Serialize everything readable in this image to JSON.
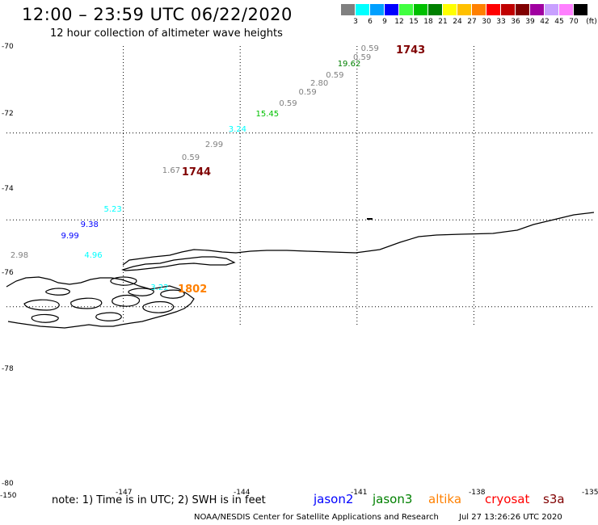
{
  "header": {
    "title": "12:00 – 23:59 UTC 06/22/2020",
    "subtitle": "12 hour collection of altimeter wave heights"
  },
  "legend": {
    "unit": "(ft)",
    "bins": [
      {
        "label": "3",
        "color": "#808080"
      },
      {
        "label": "6",
        "color": "#00ffff"
      },
      {
        "label": "9",
        "color": "#00a0ff"
      },
      {
        "label": "12",
        "color": "#0000ff"
      },
      {
        "label": "15",
        "color": "#40ff40"
      },
      {
        "label": "18",
        "color": "#00c000"
      },
      {
        "label": "21",
        "color": "#008000"
      },
      {
        "label": "24",
        "color": "#ffff00"
      },
      {
        "label": "27",
        "color": "#ffc000"
      },
      {
        "label": "30",
        "color": "#ff8000"
      },
      {
        "label": "33",
        "color": "#ff0000"
      },
      {
        "label": "36",
        "color": "#c00000"
      },
      {
        "label": "39",
        "color": "#800000"
      },
      {
        "label": "42",
        "color": "#a000a0"
      },
      {
        "label": "45",
        "color": "#c8a0ff"
      },
      {
        "label": "70",
        "color": "#ff80ff"
      },
      {
        "label": "",
        "color": "#000000"
      }
    ]
  },
  "axes": {
    "lat_labels": [
      "-70",
      "-72",
      "-74",
      "-76",
      "-78",
      "-80"
    ],
    "lon_labels": [
      "-150",
      "-147",
      "-144",
      "-141",
      "-138",
      "-135"
    ]
  },
  "observations": [
    {
      "text": "0.59",
      "lat": -70.1,
      "lon": -140.9,
      "color": "#808080"
    },
    {
      "text": "1743",
      "lat": -70.1,
      "lon": -140.0,
      "color": "#800000",
      "big": true
    },
    {
      "text": "0.59",
      "lat": -70.3,
      "lon": -141.1,
      "color": "#808080"
    },
    {
      "text": "19.62",
      "lat": -70.45,
      "lon": -141.5,
      "color": "#008000"
    },
    {
      "text": "0.59",
      "lat": -70.7,
      "lon": -141.8,
      "color": "#808080"
    },
    {
      "text": "2.80",
      "lat": -70.9,
      "lon": -142.2,
      "color": "#808080"
    },
    {
      "text": "0.59",
      "lat": -71.1,
      "lon": -142.5,
      "color": "#808080"
    },
    {
      "text": "0.59",
      "lat": -71.35,
      "lon": -143.0,
      "color": "#808080"
    },
    {
      "text": "15.45",
      "lat": -71.6,
      "lon": -143.6,
      "color": "#00c000"
    },
    {
      "text": "3.24",
      "lat": -71.95,
      "lon": -144.3,
      "color": "#00ffff"
    },
    {
      "text": "2.99",
      "lat": -72.3,
      "lon": -144.9,
      "color": "#808080"
    },
    {
      "text": "0.59",
      "lat": -72.6,
      "lon": -145.5,
      "color": "#808080"
    },
    {
      "text": "1.67",
      "lat": -72.9,
      "lon": -146.0,
      "color": "#808080"
    },
    {
      "text": "1744",
      "lat": -72.9,
      "lon": -145.5,
      "color": "#800000",
      "big": true
    },
    {
      "text": "5.23",
      "lat": -73.8,
      "lon": -147.5,
      "color": "#00ffff"
    },
    {
      "text": "9.38",
      "lat": -74.15,
      "lon": -148.1,
      "color": "#0000ff"
    },
    {
      "text": "9.99",
      "lat": -74.4,
      "lon": -148.6,
      "color": "#0000ff"
    },
    {
      "text": "2.98",
      "lat": -74.85,
      "lon": -149.9,
      "color": "#808080"
    },
    {
      "text": "4.96",
      "lat": -74.85,
      "lon": -148.0,
      "color": "#00ffff"
    },
    {
      "text": "3.22",
      "lat": -75.6,
      "lon": -146.3,
      "color": "#00ffff"
    },
    {
      "text": "1802",
      "lat": -75.6,
      "lon": -145.6,
      "color": "#ff8000",
      "big": true
    }
  ],
  "footer": {
    "note": "note:  1) Time is in UTC;  2) SWH is in feet",
    "satellites": [
      {
        "name": "jason2",
        "color": "#0000ff"
      },
      {
        "name": "jason3",
        "color": "#008000"
      },
      {
        "name": "altika",
        "color": "#ff8000"
      },
      {
        "name": "cryosat",
        "color": "#ff0000"
      },
      {
        "name": "s3a",
        "color": "#800000"
      }
    ],
    "credit": "NOAA/NESDIS Center for Satellite Applications and Research",
    "timestamp": "Jul 27 13:26:26 UTC 2020"
  }
}
